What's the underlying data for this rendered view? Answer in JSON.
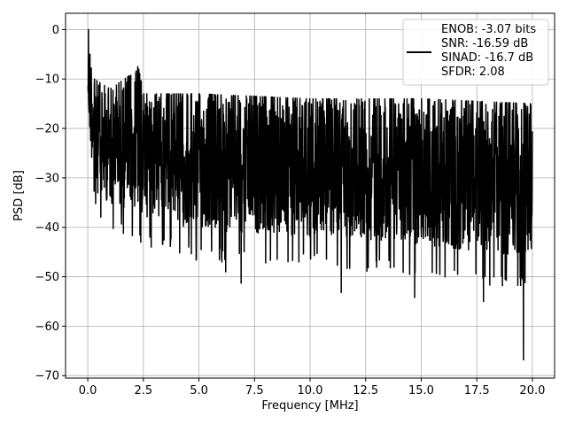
{
  "chart_data": {
    "type": "line",
    "title": "",
    "xlabel": "Frequency [MHz]",
    "ylabel": "PSD [dB]",
    "xlim": [
      -1.0,
      21.0
    ],
    "ylim": [
      -70.5,
      3.3
    ],
    "xticks": [
      0.0,
      2.5,
      5.0,
      7.5,
      10.0,
      12.5,
      15.0,
      17.5,
      20.0
    ],
    "xtick_labels": [
      "0.0",
      "2.5",
      "5.0",
      "7.5",
      "10.0",
      "12.5",
      "15.0",
      "17.5",
      "20.0"
    ],
    "yticks": [
      0,
      -10,
      -20,
      -30,
      -40,
      -50,
      -60,
      -70
    ],
    "ytick_labels": [
      "0",
      "−10",
      "−20",
      "−30",
      "−40",
      "−50",
      "−60",
      "−70"
    ],
    "grid": true,
    "legend_position": "top-right",
    "legend_lines": [
      "ENOB: -3.07 bits",
      "SNR: -16.59 dB",
      "SINAD: -16.7 dB",
      "SFDR: 2.08"
    ],
    "series": [
      {
        "color": "#000000",
        "x_range": [
          0.0,
          20.0
        ],
        "n_points": 2048,
        "envelope_upper": [
          [
            0.0,
            0
          ],
          [
            0.1,
            -4
          ],
          [
            0.3,
            -10
          ],
          [
            1.0,
            -12
          ],
          [
            2.3,
            -8
          ],
          [
            2.5,
            -13
          ],
          [
            5.0,
            -13
          ],
          [
            10.0,
            -14
          ],
          [
            15.0,
            -14
          ],
          [
            20.0,
            -15
          ]
        ],
        "envelope_lower": [
          [
            0.0,
            -20
          ],
          [
            0.2,
            -30
          ],
          [
            0.5,
            -37
          ],
          [
            1.0,
            -38
          ],
          [
            2.0,
            -40
          ],
          [
            5.0,
            -44
          ],
          [
            10.0,
            -45
          ],
          [
            15.0,
            -47
          ],
          [
            20.0,
            -50
          ]
        ],
        "deep_nulls": [
          [
            5.1,
            -44.5
          ],
          [
            6.2,
            -49
          ],
          [
            6.9,
            -51.3
          ],
          [
            9.5,
            -47
          ],
          [
            11.4,
            -53.2
          ],
          [
            14.7,
            -54.2
          ],
          [
            17.8,
            -55
          ],
          [
            19.6,
            -66.8
          ]
        ],
        "peaks": [
          [
            0.03,
            0
          ],
          [
            2.25,
            -7.5
          ]
        ]
      }
    ]
  }
}
